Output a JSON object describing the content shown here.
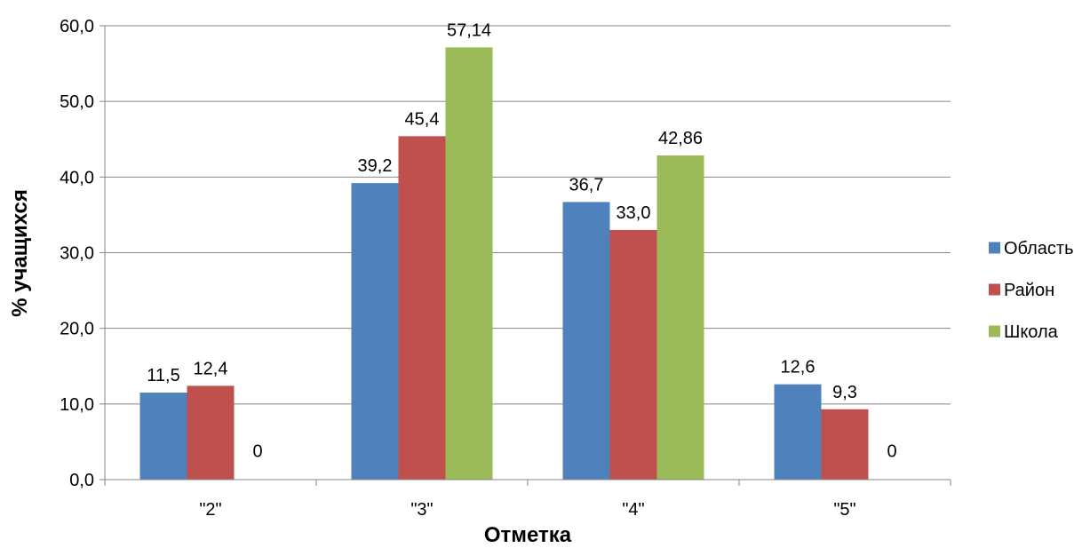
{
  "chart_data": {
    "type": "bar",
    "title": "",
    "xlabel": "Отметка",
    "ylabel": "% учащихся",
    "categories": [
      "\"2\"",
      "\"3\"",
      "\"4\"",
      "\"5\""
    ],
    "series": [
      {
        "name": "Область",
        "color": "#4F81BD",
        "values": [
          11.5,
          39.2,
          36.7,
          12.6
        ],
        "labels": [
          "11,5",
          "39,2",
          "36,7",
          "12,6"
        ]
      },
      {
        "name": "Район",
        "color": "#C0504D",
        "values": [
          12.4,
          45.4,
          33.0,
          9.3
        ],
        "labels": [
          "12,4",
          "45,4",
          "33,0",
          "9,3"
        ]
      },
      {
        "name": "Школа",
        "color": "#9BBB59",
        "values": [
          0,
          57.14,
          42.86,
          0
        ],
        "labels": [
          "0",
          "57,14",
          "42,86",
          "0"
        ]
      }
    ],
    "ylim": [
      0,
      60
    ],
    "yticks": [
      0,
      10,
      20,
      30,
      40,
      50,
      60
    ],
    "ytick_labels": [
      "0,0",
      "10,0",
      "20,0",
      "30,0",
      "40,0",
      "50,0",
      "60,0"
    ],
    "grid": true,
    "legend_position": "right"
  }
}
